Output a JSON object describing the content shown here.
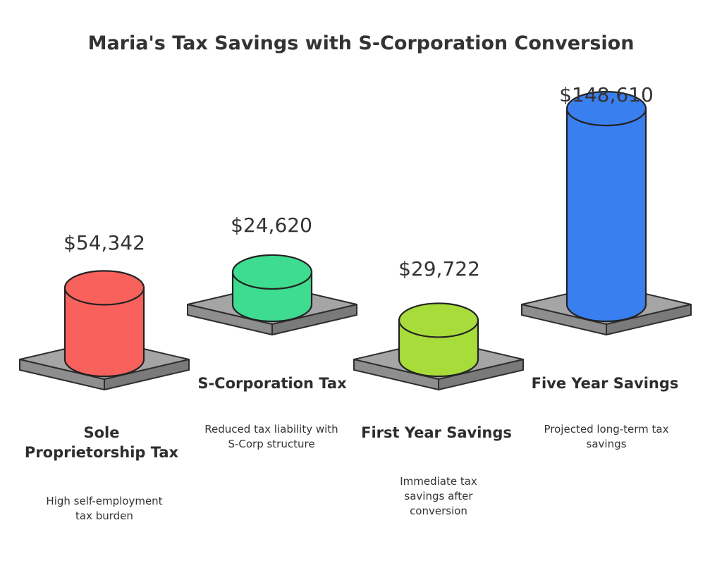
{
  "chart_data": {
    "type": "bar",
    "title": "Maria's Tax Savings with S-Corporation Conversion",
    "categories": [
      "Sole Proprietorship Tax",
      "S-Corporation Tax",
      "First Year Savings",
      "Five Year Savings"
    ],
    "values": [
      54342,
      24620,
      29722,
      148610
    ],
    "value_labels": [
      "$54,342",
      "$24,620",
      "$29,722",
      "$148,610"
    ],
    "descriptions": [
      "High self-employment tax burden",
      "Reduced tax liability with S-Corp structure",
      "Immediate tax savings after conversion",
      "Projected long-term tax savings"
    ],
    "colors": [
      "#f9615c",
      "#3ddc8f",
      "#a8dc3a",
      "#3a7ff0"
    ]
  }
}
